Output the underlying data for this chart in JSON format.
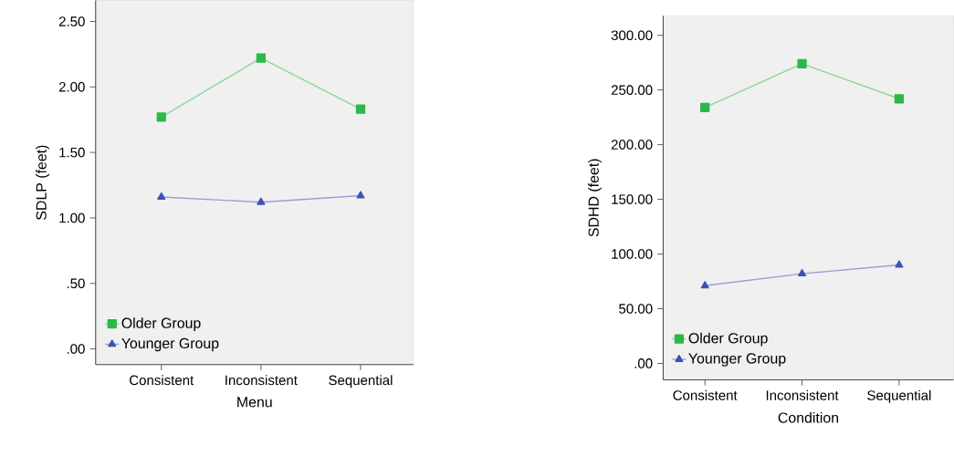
{
  "chart_data": [
    {
      "type": "line",
      "xlabel": "Menu",
      "ylabel": "SDLP (feet)",
      "categories": [
        "Consistent",
        "Inconsistent",
        "Sequential"
      ],
      "series": [
        {
          "name": "Older Group",
          "color": "#2db84a",
          "marker": "square",
          "values": [
            1.77,
            2.22,
            1.83
          ]
        },
        {
          "name": "Younger Group",
          "color": "#3f51b5",
          "marker": "triangle",
          "values": [
            1.16,
            1.12,
            1.17
          ]
        }
      ],
      "ylim": [
        -0.12,
        2.66
      ],
      "yticks": [
        {
          "value": 0,
          "label": ".00"
        },
        {
          "value": 0.5,
          "label": ".50"
        },
        {
          "value": 1,
          "label": "1.00"
        },
        {
          "value": 1.5,
          "label": "1.50"
        },
        {
          "value": 2,
          "label": "2.00"
        },
        {
          "value": 2.5,
          "label": "2.50"
        }
      ],
      "legend": "bottom left",
      "grid": false
    },
    {
      "type": "line",
      "xlabel": "Condition",
      "ylabel": "SDHD (feet)",
      "categories": [
        "Consistent",
        "Inconsistent",
        "Sequential"
      ],
      "series": [
        {
          "name": "Older Group",
          "color": "#2db84a",
          "marker": "square",
          "values": [
            234,
            274,
            242
          ]
        },
        {
          "name": "Younger Group",
          "color": "#3f51b5",
          "marker": "triangle",
          "values": [
            71,
            82,
            90
          ]
        }
      ],
      "ylim": [
        -15,
        318
      ],
      "yticks": [
        {
          "value": 0,
          "label": ".00"
        },
        {
          "value": 50,
          "label": "50.00"
        },
        {
          "value": 100,
          "label": "100.00"
        },
        {
          "value": 150,
          "label": "150.00"
        },
        {
          "value": 200,
          "label": "200.00"
        },
        {
          "value": 250,
          "label": "250.00"
        },
        {
          "value": 300,
          "label": "300.00"
        }
      ],
      "legend": "bottom left",
      "grid": false
    }
  ]
}
